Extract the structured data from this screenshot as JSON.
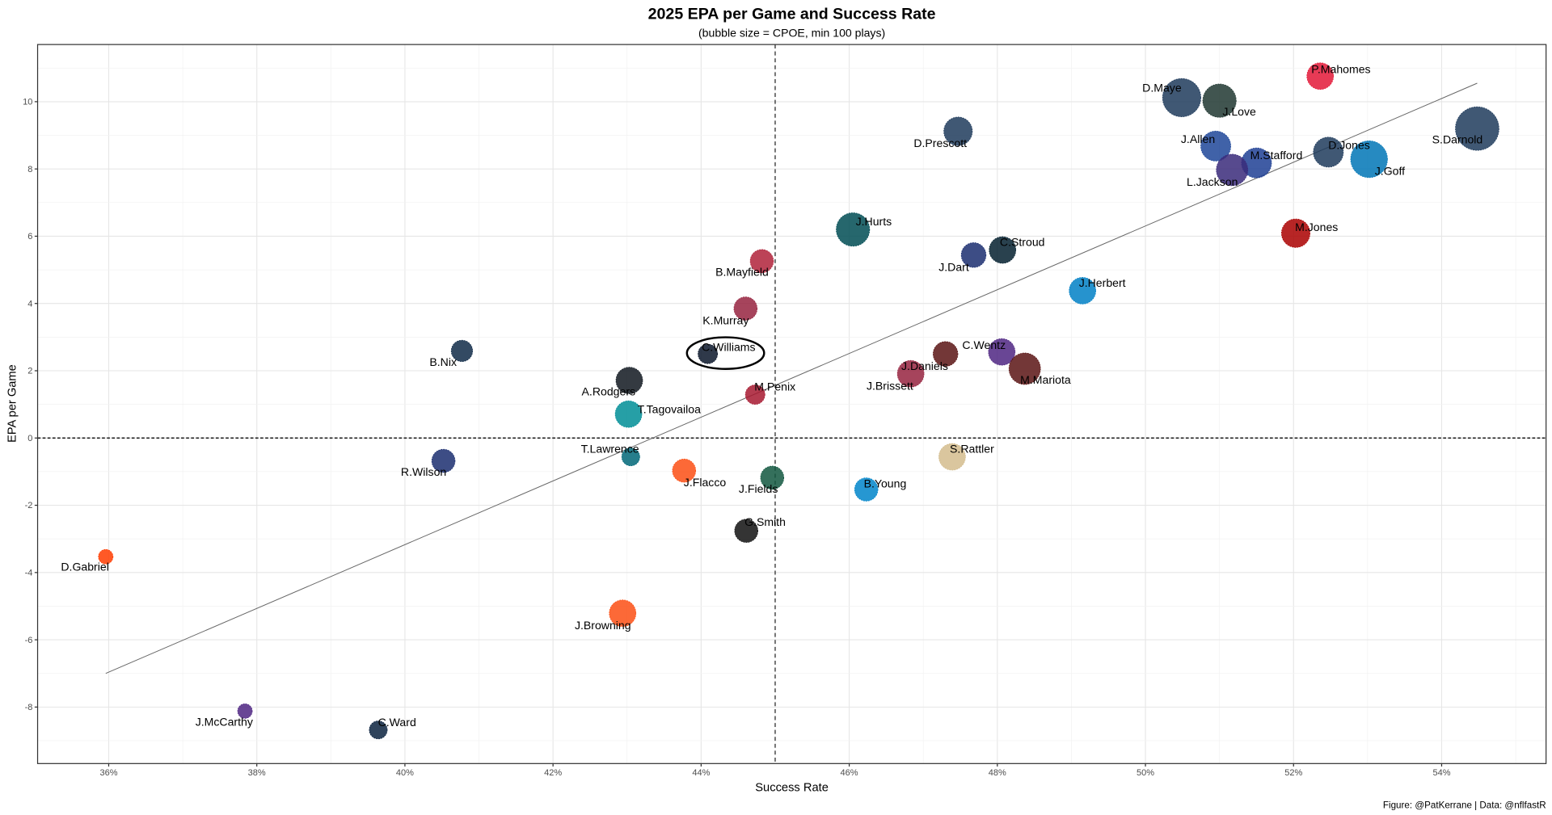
{
  "chart_data": {
    "type": "scatter",
    "title": "2025 EPA per Game and Success Rate",
    "subtitle": "(bubble size = CPOE, min 100 plays)",
    "xlabel": "Success Rate",
    "ylabel": "EPA per Game",
    "caption": "Figure: @PatKerrane | Data: @nflfastR",
    "xlim": [
      35.04,
      55.41
    ],
    "ylim": [
      -9.68,
      11.7
    ],
    "x_ticks": [
      36,
      38,
      40,
      42,
      44,
      46,
      48,
      50,
      52,
      54
    ],
    "x_tick_labels": [
      "36%",
      "38%",
      "40%",
      "42%",
      "44%",
      "46%",
      "48%",
      "50%",
      "52%",
      "54%"
    ],
    "y_ticks": [
      -8,
      -6,
      -4,
      -2,
      0,
      2,
      4,
      6,
      8,
      10
    ],
    "y_tick_labels": [
      "-8",
      "-6",
      "-4",
      "-2",
      "0",
      "2",
      "4",
      "6",
      "8",
      "10"
    ],
    "grid": true,
    "reference_lines": {
      "x": 45,
      "y": 0
    },
    "trend_line": {
      "x": [
        35.96,
        54.48
      ],
      "y": [
        -7.0,
        10.55
      ]
    },
    "highlighted": "C.Williams",
    "points": [
      {
        "name": "P.Mahomes",
        "x": 52.36,
        "y": 10.76,
        "size": 0.55,
        "color": "#E31837"
      },
      {
        "name": "D.Maye",
        "x": 50.49,
        "y": 10.12,
        "size": 0.86,
        "color": "#1F3B5C"
      },
      {
        "name": "J.Love",
        "x": 51.0,
        "y": 10.03,
        "size": 0.73,
        "color": "#203731"
      },
      {
        "name": "S.Darnold",
        "x": 54.48,
        "y": 9.2,
        "size": 1.0,
        "color": "#1F3B5C"
      },
      {
        "name": "D.Prescott",
        "x": 47.47,
        "y": 9.12,
        "size": 0.6,
        "color": "#1F3B5C"
      },
      {
        "name": "J.Allen",
        "x": 50.95,
        "y": 8.68,
        "size": 0.64,
        "color": "#1E4799"
      },
      {
        "name": "D.Jones",
        "x": 52.47,
        "y": 8.5,
        "size": 0.64,
        "color": "#1F3B5C"
      },
      {
        "name": "M.Stafford",
        "x": 51.5,
        "y": 8.18,
        "size": 0.64,
        "color": "#1E3F94"
      },
      {
        "name": "L.Jackson",
        "x": 51.17,
        "y": 7.97,
        "size": 0.68,
        "color": "#3A2A7A"
      },
      {
        "name": "J.Goff",
        "x": 53.02,
        "y": 8.29,
        "size": 0.82,
        "color": "#0076B6"
      },
      {
        "name": "J.Hurts",
        "x": 46.05,
        "y": 6.2,
        "size": 0.73,
        "color": "#004C54"
      },
      {
        "name": "M.Jones",
        "x": 52.03,
        "y": 6.09,
        "size": 0.6,
        "color": "#AA0000"
      },
      {
        "name": "C.Stroud",
        "x": 48.07,
        "y": 5.59,
        "size": 0.55,
        "color": "#03202F"
      },
      {
        "name": "J.Dart",
        "x": 47.68,
        "y": 5.44,
        "size": 0.5,
        "color": "#1B2E70"
      },
      {
        "name": "B.Mayfield",
        "x": 44.82,
        "y": 5.26,
        "size": 0.46,
        "color": "#B0223A"
      },
      {
        "name": "J.Herbert",
        "x": 49.15,
        "y": 4.38,
        "size": 0.55,
        "color": "#0080C6"
      },
      {
        "name": "K.Murray",
        "x": 44.6,
        "y": 3.85,
        "size": 0.46,
        "color": "#97233F"
      },
      {
        "name": "C.Williams",
        "x": 44.09,
        "y": 2.5,
        "size": 0.36,
        "color": "#0B162A"
      },
      {
        "name": "B.Nix",
        "x": 40.77,
        "y": 2.59,
        "size": 0.41,
        "color": "#0F2A48"
      },
      {
        "name": "C.Wentz",
        "x": 48.06,
        "y": 2.56,
        "size": 0.55,
        "color": "#4F2683"
      },
      {
        "name": "M.Mariota",
        "x": 48.37,
        "y": 2.06,
        "size": 0.68,
        "color": "#5A1414"
      },
      {
        "name": "J.Daniels",
        "x": 47.3,
        "y": 2.5,
        "size": 0.5,
        "color": "#5A1414"
      },
      {
        "name": "J.Brissett",
        "x": 46.83,
        "y": 1.91,
        "size": 0.55,
        "color": "#97233F"
      },
      {
        "name": "A.Rodgers",
        "x": 43.03,
        "y": 1.71,
        "size": 0.55,
        "color": "#101820"
      },
      {
        "name": "M.Penix",
        "x": 44.73,
        "y": 1.29,
        "size": 0.36,
        "color": "#A71930"
      },
      {
        "name": "T.Tagovailoa",
        "x": 43.02,
        "y": 0.71,
        "size": 0.55,
        "color": "#008E97"
      },
      {
        "name": "T.Lawrence",
        "x": 43.05,
        "y": -0.56,
        "size": 0.32,
        "color": "#006778"
      },
      {
        "name": "R.Wilson",
        "x": 40.52,
        "y": -0.68,
        "size": 0.46,
        "color": "#1B2E70"
      },
      {
        "name": "J.Flacco",
        "x": 43.77,
        "y": -0.97,
        "size": 0.46,
        "color": "#FB4F14"
      },
      {
        "name": "J.Fields",
        "x": 44.96,
        "y": -1.18,
        "size": 0.46,
        "color": "#125740"
      },
      {
        "name": "S.Rattler",
        "x": 47.39,
        "y": -0.56,
        "size": 0.55,
        "color": "#D3BC8D"
      },
      {
        "name": "B.Young",
        "x": 46.23,
        "y": -1.53,
        "size": 0.46,
        "color": "#0085CA"
      },
      {
        "name": "G.Smith",
        "x": 44.61,
        "y": -2.76,
        "size": 0.46,
        "color": "#111111"
      },
      {
        "name": "D.Gabriel",
        "x": 35.96,
        "y": -3.53,
        "size": 0.23,
        "color": "#FF3C00"
      },
      {
        "name": "J.Browning",
        "x": 42.94,
        "y": -5.21,
        "size": 0.55,
        "color": "#FB4F14"
      },
      {
        "name": "J.McCarthy",
        "x": 37.84,
        "y": -8.12,
        "size": 0.23,
        "color": "#4F2683"
      },
      {
        "name": "C.Ward",
        "x": 39.64,
        "y": -8.68,
        "size": 0.32,
        "color": "#0C2340"
      }
    ]
  }
}
